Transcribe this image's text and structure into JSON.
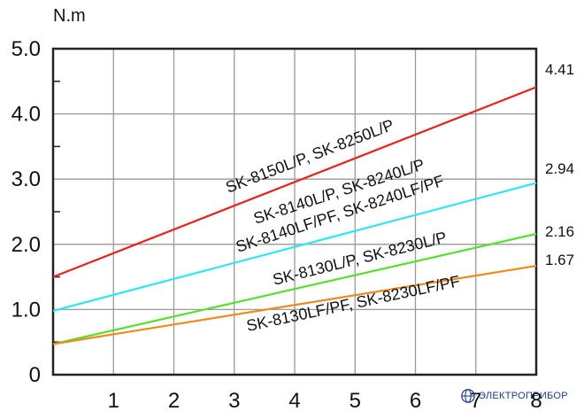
{
  "chart_data": {
    "type": "line",
    "ylabel": "N.m",
    "xlim": [
      0,
      8
    ],
    "ylim": [
      0,
      5
    ],
    "x_ticks": [
      "1",
      "2",
      "3",
      "4",
      "5",
      "6",
      "7",
      "8"
    ],
    "y_ticks": [
      "0",
      "1.0",
      "2.0",
      "3.0",
      "4.0",
      "5.0"
    ],
    "grid": true,
    "series": [
      {
        "name": "SK-8150L/P,  SK-8250L/P",
        "color": "#e8211c",
        "x": [
          0,
          8
        ],
        "y": [
          1.5,
          4.41
        ],
        "end_label": "4.41"
      },
      {
        "name": "SK-8140L/P,  SK-8240L/P",
        "name2": "SK-8140LF/PF,  SK-8240LF/PF",
        "color": "#33e5ee",
        "x": [
          0,
          8
        ],
        "y": [
          0.98,
          2.94
        ],
        "end_label": "2.94"
      },
      {
        "name": "SK-8130L/P,  SK-8230L/P",
        "color": "#55e02e",
        "x": [
          0,
          8
        ],
        "y": [
          0.47,
          2.16
        ],
        "end_label": "2.16"
      },
      {
        "name": "SK-8130LF/PF,  SK-8230LF/PF",
        "color": "#f08a1c",
        "x": [
          0,
          8
        ],
        "y": [
          0.47,
          1.67
        ],
        "end_label": "1.67"
      }
    ]
  },
  "watermark": {
    "text": "ЭЛЕКТРОПРИБОР"
  }
}
